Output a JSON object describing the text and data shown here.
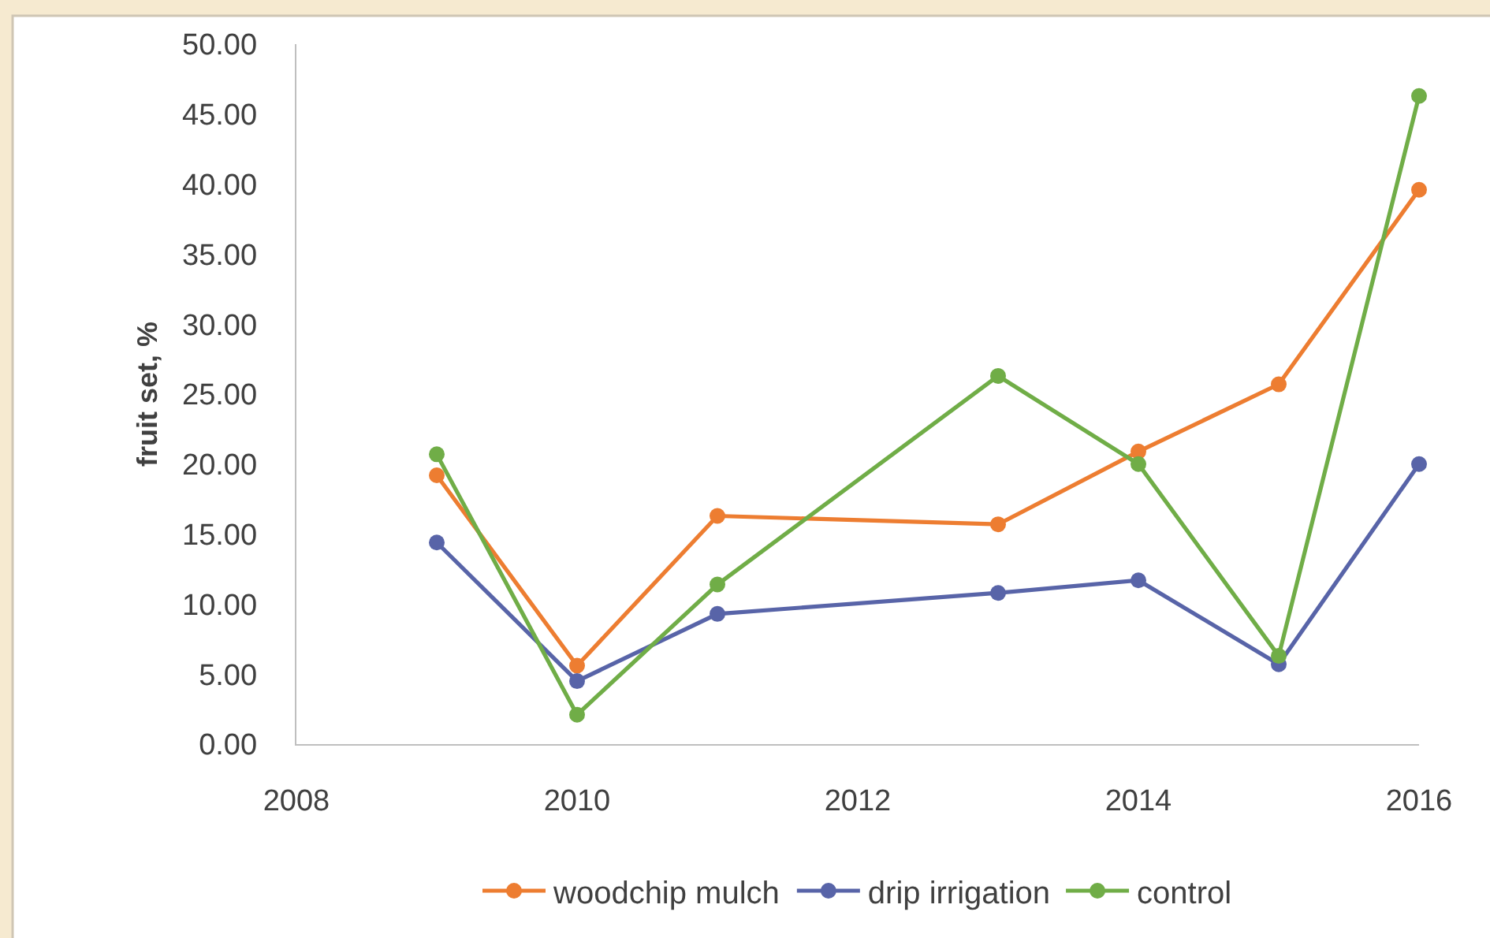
{
  "chart_data": {
    "type": "line",
    "x": [
      2009,
      2010,
      2011,
      2013,
      2014,
      2015,
      2016
    ],
    "series": [
      {
        "name": "woodchip mulch",
        "color": "#ed7d31",
        "values": [
          19.2,
          5.6,
          16.3,
          15.7,
          20.9,
          25.7,
          39.6
        ]
      },
      {
        "name": "drip irrigation",
        "color": "#5864a8",
        "values": [
          14.4,
          4.5,
          9.3,
          10.8,
          11.7,
          5.7,
          20.0
        ]
      },
      {
        "name": "control",
        "color": "#70ad47",
        "values": [
          20.7,
          2.1,
          11.4,
          26.3,
          20.0,
          6.3,
          46.3
        ]
      }
    ],
    "ylabel": "fruit set, %",
    "xlim": [
      2008,
      2016
    ],
    "xticks": [
      2008,
      2010,
      2012,
      2014,
      2016
    ],
    "ylim": [
      0,
      50
    ],
    "yticks": [
      {
        "value": 0,
        "label": "0.00"
      },
      {
        "value": 5,
        "label": "5.00"
      },
      {
        "value": 10,
        "label": "10.00"
      },
      {
        "value": 15,
        "label": "15.00"
      },
      {
        "value": 20,
        "label": "20.00"
      },
      {
        "value": 25,
        "label": "25.00"
      },
      {
        "value": 30,
        "label": "30.00"
      },
      {
        "value": 35,
        "label": "35.00"
      },
      {
        "value": 40,
        "label": "40.00"
      },
      {
        "value": 45,
        "label": "45.00"
      },
      {
        "value": 50,
        "label": "50.00"
      }
    ],
    "grid": false,
    "legend": "bottom",
    "marker": "circle",
    "line_style": "solid"
  }
}
